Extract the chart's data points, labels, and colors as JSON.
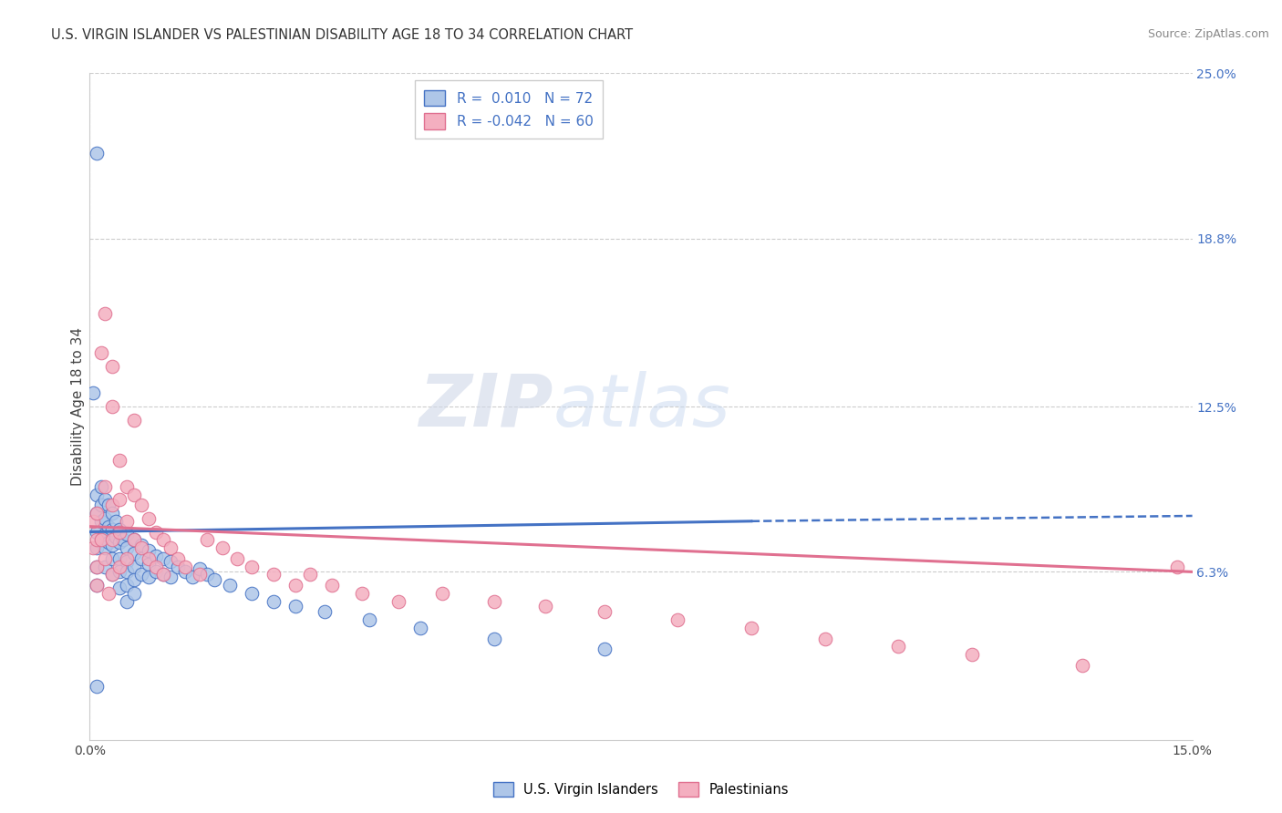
{
  "title": "U.S. VIRGIN ISLANDER VS PALESTINIAN DISABILITY AGE 18 TO 34 CORRELATION CHART",
  "source": "Source: ZipAtlas.com",
  "ylabel": "Disability Age 18 to 34",
  "xlim": [
    0.0,
    0.15
  ],
  "ylim": [
    0.0,
    0.25
  ],
  "ytick_labels_right": [
    "6.3%",
    "12.5%",
    "18.8%",
    "25.0%"
  ],
  "ytick_vals_right": [
    0.063,
    0.125,
    0.188,
    0.25
  ],
  "hline_vals": [
    0.063,
    0.125,
    0.188,
    0.25
  ],
  "R_vi": 0.01,
  "N_vi": 72,
  "R_pal": -0.042,
  "N_pal": 60,
  "color_vi": "#aec6e8",
  "color_pal": "#f4afc0",
  "color_vi_line": "#4472c4",
  "color_pal_line": "#e07090",
  "legend_label_vi": "U.S. Virgin Islanders",
  "legend_label_pal": "Palestinians",
  "watermark_zip": "ZIP",
  "watermark_atlas": "atlas",
  "vi_x": [
    0.0005,
    0.001,
    0.001,
    0.001,
    0.001,
    0.001,
    0.001,
    0.0015,
    0.0015,
    0.0015,
    0.0015,
    0.002,
    0.002,
    0.002,
    0.002,
    0.002,
    0.0025,
    0.0025,
    0.0025,
    0.003,
    0.003,
    0.003,
    0.003,
    0.003,
    0.0035,
    0.0035,
    0.004,
    0.004,
    0.004,
    0.004,
    0.004,
    0.0045,
    0.005,
    0.005,
    0.005,
    0.005,
    0.005,
    0.005,
    0.006,
    0.006,
    0.006,
    0.006,
    0.006,
    0.007,
    0.007,
    0.007,
    0.008,
    0.008,
    0.008,
    0.009,
    0.009,
    0.01,
    0.01,
    0.011,
    0.011,
    0.012,
    0.013,
    0.014,
    0.015,
    0.016,
    0.017,
    0.019,
    0.022,
    0.025,
    0.028,
    0.032,
    0.038,
    0.045,
    0.055,
    0.07,
    0.001,
    0.001
  ],
  "vi_y": [
    0.13,
    0.085,
    0.092,
    0.078,
    0.072,
    0.065,
    0.058,
    0.095,
    0.088,
    0.082,
    0.075,
    0.09,
    0.083,
    0.077,
    0.072,
    0.065,
    0.088,
    0.08,
    0.074,
    0.085,
    0.079,
    0.073,
    0.068,
    0.062,
    0.082,
    0.076,
    0.079,
    0.074,
    0.068,
    0.063,
    0.057,
    0.075,
    0.077,
    0.072,
    0.067,
    0.063,
    0.058,
    0.052,
    0.075,
    0.07,
    0.065,
    0.06,
    0.055,
    0.073,
    0.068,
    0.062,
    0.071,
    0.066,
    0.061,
    0.069,
    0.063,
    0.068,
    0.062,
    0.067,
    0.061,
    0.065,
    0.063,
    0.061,
    0.064,
    0.062,
    0.06,
    0.058,
    0.055,
    0.052,
    0.05,
    0.048,
    0.045,
    0.042,
    0.038,
    0.034,
    0.22,
    0.02
  ],
  "pal_x": [
    0.0005,
    0.0005,
    0.001,
    0.001,
    0.001,
    0.001,
    0.0015,
    0.0015,
    0.002,
    0.002,
    0.002,
    0.0025,
    0.003,
    0.003,
    0.003,
    0.003,
    0.003,
    0.004,
    0.004,
    0.004,
    0.004,
    0.005,
    0.005,
    0.005,
    0.006,
    0.006,
    0.006,
    0.007,
    0.007,
    0.008,
    0.008,
    0.009,
    0.009,
    0.01,
    0.01,
    0.011,
    0.012,
    0.013,
    0.015,
    0.016,
    0.018,
    0.02,
    0.022,
    0.025,
    0.028,
    0.03,
    0.033,
    0.037,
    0.042,
    0.048,
    0.055,
    0.062,
    0.07,
    0.08,
    0.09,
    0.1,
    0.11,
    0.12,
    0.135,
    0.148
  ],
  "pal_y": [
    0.082,
    0.072,
    0.085,
    0.075,
    0.065,
    0.058,
    0.145,
    0.075,
    0.16,
    0.095,
    0.068,
    0.055,
    0.14,
    0.125,
    0.088,
    0.075,
    0.062,
    0.105,
    0.09,
    0.078,
    0.065,
    0.095,
    0.082,
    0.068,
    0.12,
    0.092,
    0.075,
    0.088,
    0.072,
    0.083,
    0.068,
    0.078,
    0.065,
    0.075,
    0.062,
    0.072,
    0.068,
    0.065,
    0.062,
    0.075,
    0.072,
    0.068,
    0.065,
    0.062,
    0.058,
    0.062,
    0.058,
    0.055,
    0.052,
    0.055,
    0.052,
    0.05,
    0.048,
    0.045,
    0.042,
    0.038,
    0.035,
    0.032,
    0.028,
    0.065
  ],
  "vi_trend_x0": 0.0,
  "vi_trend_y0": 0.078,
  "vi_trend_x1": 0.09,
  "vi_trend_y1": 0.082,
  "vi_trend_xdash0": 0.09,
  "vi_trend_ydash0": 0.082,
  "vi_trend_xdash1": 0.15,
  "vi_trend_ydash1": 0.084,
  "pal_trend_x0": 0.0,
  "pal_trend_y0": 0.08,
  "pal_trend_x1": 0.15,
  "pal_trend_y1": 0.063
}
